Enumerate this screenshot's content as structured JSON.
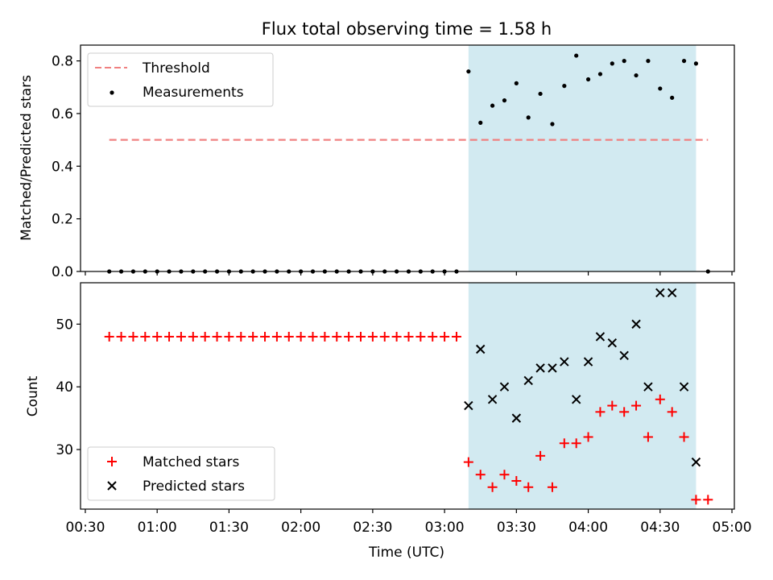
{
  "figure": {
    "title": "Flux total observing time = 1.58 h",
    "xlabel": "Time (UTC)",
    "xtick_labels": [
      "00:30",
      "01:00",
      "01:30",
      "02:00",
      "02:30",
      "03:00",
      "03:30",
      "04:00",
      "04:30",
      "05:00"
    ]
  },
  "colors": {
    "threshold": "#f08080",
    "shade": "#add8e6",
    "measurement": "#000000",
    "matched": "#ff0000",
    "predicted": "#000000"
  },
  "chart_data": [
    {
      "type": "scatter",
      "ylabel": "Matched/Predicted stars",
      "xlim": [
        "00:28",
        "05:01"
      ],
      "ylim": [
        0,
        0.86
      ],
      "yticks": [
        0.0,
        0.2,
        0.4,
        0.6,
        0.8
      ],
      "ytick_labels": [
        "0.0",
        "0.2",
        "0.4",
        "0.6",
        "0.8"
      ],
      "grid": false,
      "legend_position": "top-left",
      "shaded_interval": [
        "03:10",
        "04:45"
      ],
      "threshold": {
        "name": "Threshold",
        "value": 0.5,
        "x": [
          "00:40",
          "04:50"
        ]
      },
      "series": [
        {
          "name": "Measurements",
          "x": [
            "00:40",
            "00:45",
            "00:50",
            "00:55",
            "01:00",
            "01:05",
            "01:10",
            "01:15",
            "01:20",
            "01:25",
            "01:30",
            "01:35",
            "01:40",
            "01:45",
            "01:50",
            "01:55",
            "02:00",
            "02:05",
            "02:10",
            "02:15",
            "02:20",
            "02:25",
            "02:30",
            "02:35",
            "02:40",
            "02:45",
            "02:50",
            "02:55",
            "03:00",
            "03:05",
            "03:10",
            "03:15",
            "03:20",
            "03:25",
            "03:30",
            "03:35",
            "03:40",
            "03:45",
            "03:50",
            "03:55",
            "04:00",
            "04:05",
            "04:10",
            "04:15",
            "04:20",
            "04:25",
            "04:30",
            "04:35",
            "04:40",
            "04:45",
            "04:50"
          ],
          "y": [
            0,
            0,
            0,
            0,
            0,
            0,
            0,
            0,
            0,
            0,
            0,
            0,
            0,
            0,
            0,
            0,
            0,
            0,
            0,
            0,
            0,
            0,
            0,
            0,
            0,
            0,
            0,
            0,
            0,
            0,
            0.76,
            0.565,
            0.63,
            0.65,
            0.715,
            0.585,
            0.675,
            0.56,
            0.705,
            0.82,
            0.73,
            0.75,
            0.79,
            0.8,
            0.745,
            0.8,
            0.695,
            0.66,
            0.8,
            0.79,
            0
          ]
        }
      ]
    },
    {
      "type": "scatter",
      "ylabel": "Count",
      "xlim": [
        "00:28",
        "05:01"
      ],
      "ylim": [
        20.5,
        56.6
      ],
      "yticks": [
        30,
        40,
        50
      ],
      "ytick_labels": [
        "30",
        "40",
        "50"
      ],
      "grid": false,
      "legend_position": "bottom-left",
      "shaded_interval": [
        "03:10",
        "04:45"
      ],
      "series": [
        {
          "name": "Matched stars",
          "marker": "+",
          "x": [
            "00:40",
            "00:45",
            "00:50",
            "00:55",
            "01:00",
            "01:05",
            "01:10",
            "01:15",
            "01:20",
            "01:25",
            "01:30",
            "01:35",
            "01:40",
            "01:45",
            "01:50",
            "01:55",
            "02:00",
            "02:05",
            "02:10",
            "02:15",
            "02:20",
            "02:25",
            "02:30",
            "02:35",
            "02:40",
            "02:45",
            "02:50",
            "02:55",
            "03:00",
            "03:05",
            "03:10",
            "03:15",
            "03:20",
            "03:25",
            "03:30",
            "03:35",
            "03:40",
            "03:45",
            "03:50",
            "03:55",
            "04:00",
            "04:05",
            "04:10",
            "04:15",
            "04:20",
            "04:25",
            "04:30",
            "04:35",
            "04:40",
            "04:45",
            "04:50"
          ],
          "y": [
            48,
            48,
            48,
            48,
            48,
            48,
            48,
            48,
            48,
            48,
            48,
            48,
            48,
            48,
            48,
            48,
            48,
            48,
            48,
            48,
            48,
            48,
            48,
            48,
            48,
            48,
            48,
            48,
            48,
            48,
            28,
            26,
            24,
            26,
            25,
            24,
            29,
            24,
            31,
            31,
            32,
            36,
            37,
            36,
            37,
            32,
            38,
            36,
            32,
            22,
            22
          ]
        },
        {
          "name": "Predicted stars",
          "marker": "x",
          "x": [
            "03:10",
            "03:15",
            "03:20",
            "03:25",
            "03:30",
            "03:35",
            "03:40",
            "03:45",
            "03:50",
            "03:55",
            "04:00",
            "04:05",
            "04:10",
            "04:15",
            "04:20",
            "04:25",
            "04:30",
            "04:35",
            "04:40",
            "04:45"
          ],
          "y": [
            37,
            46,
            38,
            40,
            35,
            41,
            43,
            43,
            44,
            38,
            44,
            48,
            47,
            45,
            50,
            40,
            55,
            55,
            40,
            28
          ]
        }
      ]
    }
  ]
}
